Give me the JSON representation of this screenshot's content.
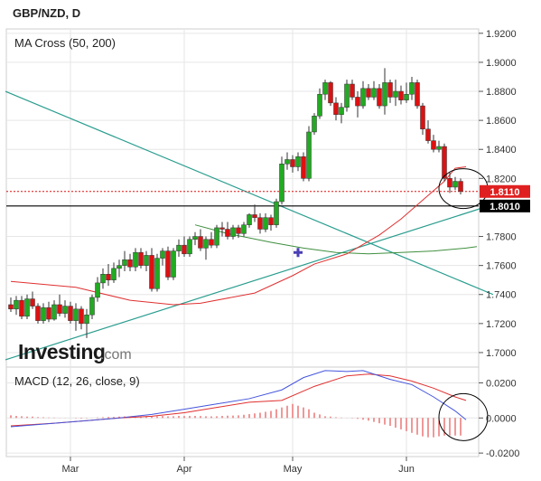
{
  "header": {
    "symbol_label": "GBP/NZD, D"
  },
  "logo": {
    "brand": "Investing",
    "suffix": ".com"
  },
  "main_panel": {
    "indicator_label": "MA Cross (50, 200)",
    "y_ticks": [
      "1.9200",
      "1.9000",
      "1.8800",
      "1.8600",
      "1.8400",
      "1.8200",
      "1.7800",
      "1.7600",
      "1.7400",
      "1.7200",
      "1.7000"
    ],
    "price_badge": {
      "label": "1.8110",
      "color": "#e02020"
    },
    "support_badge": {
      "label": "1.8010",
      "color": "#000000"
    }
  },
  "macd_panel": {
    "label": "MACD (12, 26, close, 9)",
    "y_ticks": [
      "0.0200",
      "0.0000",
      "-0.0200"
    ]
  },
  "x_axis": {
    "labels": [
      "Mar",
      "Apr",
      "May",
      "Jun"
    ]
  },
  "colors": {
    "bull": "#22aa22",
    "bear": "#dd1111",
    "ma50": "#e03030",
    "ma200": "#3f8f3f",
    "trend": "#2a9d8f",
    "macd": "#4455dd",
    "signal": "#e03030",
    "hist": "#e03030",
    "grid": "#e6e6e6",
    "axis": "#555555"
  },
  "chart_data": {
    "type": "candlestick",
    "timeframe": "D",
    "ohlc": [
      [
        1.733,
        1.738,
        1.728,
        1.73
      ],
      [
        1.73,
        1.739,
        1.726,
        1.736
      ],
      [
        1.736,
        1.739,
        1.723,
        1.725
      ],
      [
        1.725,
        1.74,
        1.723,
        1.737
      ],
      [
        1.737,
        1.742,
        1.73,
        1.732
      ],
      [
        1.732,
        1.734,
        1.72,
        1.722
      ],
      [
        1.722,
        1.734,
        1.72,
        1.731
      ],
      [
        1.731,
        1.735,
        1.721,
        1.723
      ],
      [
        1.723,
        1.736,
        1.722,
        1.733
      ],
      [
        1.733,
        1.74,
        1.725,
        1.727
      ],
      [
        1.727,
        1.736,
        1.724,
        1.732
      ],
      [
        1.732,
        1.735,
        1.72,
        1.722
      ],
      [
        1.722,
        1.734,
        1.715,
        1.73
      ],
      [
        1.73,
        1.732,
        1.716,
        1.72
      ],
      [
        1.72,
        1.73,
        1.71,
        1.726
      ],
      [
        1.726,
        1.74,
        1.723,
        1.738
      ],
      [
        1.738,
        1.752,
        1.735,
        1.748
      ],
      [
        1.748,
        1.758,
        1.744,
        1.754
      ],
      [
        1.754,
        1.761,
        1.746,
        1.75
      ],
      [
        1.75,
        1.762,
        1.748,
        1.758
      ],
      [
        1.758,
        1.764,
        1.752,
        1.76
      ],
      [
        1.76,
        1.77,
        1.756,
        1.764
      ],
      [
        1.764,
        1.768,
        1.756,
        1.759
      ],
      [
        1.759,
        1.772,
        1.756,
        1.769
      ],
      [
        1.769,
        1.772,
        1.758,
        1.76
      ],
      [
        1.76,
        1.77,
        1.756,
        1.767
      ],
      [
        1.767,
        1.772,
        1.742,
        1.744
      ],
      [
        1.744,
        1.768,
        1.742,
        1.765
      ],
      [
        1.765,
        1.772,
        1.76,
        1.77
      ],
      [
        1.77,
        1.773,
        1.75,
        1.752
      ],
      [
        1.752,
        1.772,
        1.75,
        1.77
      ],
      [
        1.77,
        1.778,
        1.766,
        1.774
      ],
      [
        1.774,
        1.78,
        1.766,
        1.768
      ],
      [
        1.768,
        1.78,
        1.766,
        1.778
      ],
      [
        1.778,
        1.783,
        1.774,
        1.78
      ],
      [
        1.78,
        1.785,
        1.77,
        1.772
      ],
      [
        1.772,
        1.78,
        1.764,
        1.778
      ],
      [
        1.778,
        1.783,
        1.772,
        1.774
      ],
      [
        1.774,
        1.788,
        1.772,
        1.786
      ],
      [
        1.786,
        1.79,
        1.78,
        1.785
      ],
      [
        1.785,
        1.79,
        1.778,
        1.78
      ],
      [
        1.78,
        1.788,
        1.778,
        1.786
      ],
      [
        1.786,
        1.788,
        1.779,
        1.782
      ],
      [
        1.782,
        1.79,
        1.78,
        1.788
      ],
      [
        1.788,
        1.796,
        1.786,
        1.795
      ],
      [
        1.795,
        1.802,
        1.79,
        1.793
      ],
      [
        1.793,
        1.796,
        1.782,
        1.785
      ],
      [
        1.785,
        1.796,
        1.783,
        1.793
      ],
      [
        1.793,
        1.795,
        1.784,
        1.788
      ],
      [
        1.788,
        1.806,
        1.786,
        1.804
      ],
      [
        1.804,
        1.835,
        1.802,
        1.83
      ],
      [
        1.83,
        1.838,
        1.826,
        1.833
      ],
      [
        1.833,
        1.836,
        1.824,
        1.828
      ],
      [
        1.828,
        1.838,
        1.825,
        1.835
      ],
      [
        1.835,
        1.838,
        1.818,
        1.82
      ],
      [
        1.82,
        1.856,
        1.818,
        1.852
      ],
      [
        1.852,
        1.865,
        1.85,
        1.863
      ],
      [
        1.863,
        1.882,
        1.861,
        1.878
      ],
      [
        1.878,
        1.888,
        1.874,
        1.886
      ],
      [
        1.886,
        1.887,
        1.87,
        1.872
      ],
      [
        1.872,
        1.876,
        1.86,
        1.864
      ],
      [
        1.864,
        1.872,
        1.858,
        1.869
      ],
      [
        1.869,
        1.888,
        1.866,
        1.885
      ],
      [
        1.885,
        1.888,
        1.874,
        1.876
      ],
      [
        1.876,
        1.88,
        1.862,
        1.87
      ],
      [
        1.87,
        1.887,
        1.868,
        1.882
      ],
      [
        1.882,
        1.885,
        1.874,
        1.876
      ],
      [
        1.876,
        1.887,
        1.874,
        1.882
      ],
      [
        1.882,
        1.885,
        1.868,
        1.87
      ],
      [
        1.87,
        1.896,
        1.864,
        1.886
      ],
      [
        1.886,
        1.888,
        1.872,
        1.876
      ],
      [
        1.876,
        1.888,
        1.87,
        1.88
      ],
      [
        1.88,
        1.884,
        1.871,
        1.874
      ],
      [
        1.874,
        1.886,
        1.872,
        1.878
      ],
      [
        1.878,
        1.89,
        1.874,
        1.886
      ],
      [
        1.886,
        1.888,
        1.868,
        1.87
      ],
      [
        1.87,
        1.872,
        1.85,
        1.854
      ],
      [
        1.854,
        1.86,
        1.844,
        1.846
      ],
      [
        1.846,
        1.85,
        1.838,
        1.84
      ],
      [
        1.84,
        1.846,
        1.838,
        1.842
      ],
      [
        1.842,
        1.844,
        1.818,
        1.82
      ],
      [
        1.82,
        1.824,
        1.81,
        1.814
      ],
      [
        1.814,
        1.821,
        1.812,
        1.818
      ],
      [
        1.818,
        1.82,
        1.809,
        1.811
      ]
    ],
    "ma50": [
      [
        0,
        1.749
      ],
      [
        12,
        1.745
      ],
      [
        22,
        1.736
      ],
      [
        30,
        1.733
      ],
      [
        35,
        1.734
      ],
      [
        45,
        1.741
      ],
      [
        52,
        1.753
      ],
      [
        56,
        1.761
      ],
      [
        62,
        1.768
      ],
      [
        68,
        1.781
      ],
      [
        72,
        1.792
      ],
      [
        76,
        1.805
      ],
      [
        80,
        1.818
      ],
      [
        82,
        1.827
      ],
      [
        84,
        1.828
      ]
    ],
    "ma200": [
      [
        34,
        1.788
      ],
      [
        37,
        1.785
      ],
      [
        40,
        1.782
      ],
      [
        44,
        1.779
      ],
      [
        48,
        1.776
      ],
      [
        54,
        1.772
      ],
      [
        60,
        1.769
      ],
      [
        66,
        1.768
      ],
      [
        72,
        1.769
      ],
      [
        78,
        1.77
      ],
      [
        84,
        1.772
      ],
      [
        86,
        1.773
      ]
    ],
    "trendlines": [
      {
        "from": [
          -1,
          1.88
        ],
        "to": [
          89,
          1.74
        ]
      },
      {
        "from": [
          -1,
          1.695
        ],
        "to": [
          89,
          1.802
        ]
      }
    ],
    "levels": [
      {
        "value": 1.811,
        "style": "dotted-red"
      },
      {
        "value": 1.801,
        "style": "solid-black"
      }
    ],
    "cross_marker": [
      53,
      1.769
    ],
    "circles": [
      {
        "center": [
          83.5,
          1.813
        ],
        "panel": "price"
      },
      {
        "center": [
          83.5,
          0.0005
        ],
        "panel": "macd"
      }
    ],
    "macd": [
      [
        0,
        -0.005
      ],
      [
        8,
        -0.003
      ],
      [
        14,
        -0.0015
      ],
      [
        20,
        0.0
      ],
      [
        26,
        0.002
      ],
      [
        32,
        0.005
      ],
      [
        38,
        0.008
      ],
      [
        44,
        0.011
      ],
      [
        50,
        0.016
      ],
      [
        54,
        0.023
      ],
      [
        58,
        0.027
      ],
      [
        62,
        0.0265
      ],
      [
        65,
        0.027
      ],
      [
        70,
        0.022
      ],
      [
        74,
        0.019
      ],
      [
        78,
        0.012
      ],
      [
        82,
        0.004
      ],
      [
        84,
        -0.001
      ]
    ],
    "signal": [
      [
        0,
        -0.0045
      ],
      [
        8,
        -0.003
      ],
      [
        14,
        -0.0015
      ],
      [
        20,
        0.0
      ],
      [
        26,
        0.001
      ],
      [
        32,
        0.003
      ],
      [
        38,
        0.006
      ],
      [
        44,
        0.009
      ],
      [
        50,
        0.01
      ],
      [
        56,
        0.018
      ],
      [
        62,
        0.024
      ],
      [
        66,
        0.025
      ],
      [
        70,
        0.024
      ],
      [
        74,
        0.021
      ],
      [
        78,
        0.017
      ],
      [
        82,
        0.012
      ],
      [
        84,
        0.01
      ]
    ],
    "histogram": [
      0.0015,
      0.0012,
      0.001,
      0.0008,
      0.0008,
      0.0005,
      0.0004,
      0.0003,
      0.0002,
      0.0001,
      0.0001,
      0.0,
      -0.0002,
      -0.0003,
      -0.0002,
      0.0001,
      0.0003,
      0.0005,
      0.0006,
      0.0006,
      0.0008,
      0.0009,
      0.0009,
      0.001,
      0.0008,
      0.0009,
      0.0008,
      0.0009,
      0.0011,
      0.0009,
      0.001,
      0.0012,
      0.0011,
      0.0012,
      0.0012,
      0.0011,
      0.001,
      0.0009,
      0.001,
      0.0012,
      0.0013,
      0.0014,
      0.0015,
      0.0018,
      0.0022,
      0.0026,
      0.003,
      0.0035,
      0.004,
      0.005,
      0.006,
      0.007,
      0.008,
      0.007,
      0.006,
      0.005,
      0.003,
      0.002,
      0.001,
      0.0008,
      0.0004,
      0.0002,
      0.0001,
      -0.0002,
      -0.0005,
      -0.001,
      -0.0015,
      -0.0022,
      -0.003,
      -0.0038,
      -0.0045,
      -0.0055,
      -0.0065,
      -0.0075,
      -0.0085,
      -0.0095,
      -0.0105,
      -0.011,
      -0.011,
      -0.0105,
      -0.01,
      -0.01,
      -0.01,
      -0.01
    ],
    "price_ylim": [
      1.69,
      1.923
    ],
    "macd_ylim": [
      -0.022,
      0.029
    ],
    "x_labels_at": {
      "Mar": 11,
      "Apr": 32,
      "May": 52,
      "Jun": 73
    }
  }
}
